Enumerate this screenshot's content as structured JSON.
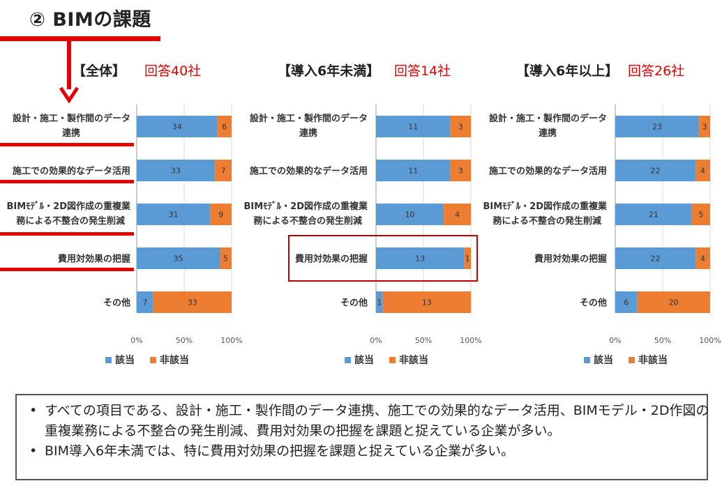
{
  "page_title": "② BIMの課題",
  "colors": {
    "series1": "#5b9bd5",
    "series2": "#ed7d31",
    "accent": "#e60000"
  },
  "chart_data": [
    {
      "type": "bar",
      "orientation": "horizontal",
      "stacked": "percent",
      "title": "【全体】",
      "subtitle": "回答40社",
      "categories": [
        "設計・施工・製作間のデータ連携",
        "施工での効果的なデータ活用",
        "BIMﾓﾃﾞﾙ・2D図作成の重複業務による不整合の発生削減",
        "費用対効果の把握",
        "その他"
      ],
      "category_lines": [
        [
          "設計・施工・製作間のデータ",
          "連携"
        ],
        [
          "施工での効果的なデータ活用"
        ],
        [
          "BIMﾓﾃﾞﾙ・2D図作成の重複業",
          "務による不整合の発生削減"
        ],
        [
          "費用対効果の把握"
        ],
        [
          "その他"
        ]
      ],
      "series": [
        {
          "name": "該当",
          "values": [
            34,
            33,
            31,
            35,
            7
          ]
        },
        {
          "name": "非該当",
          "values": [
            6,
            7,
            9,
            5,
            33
          ]
        }
      ],
      "x_ticks": [
        "0%",
        "50%",
        "100%"
      ],
      "legend": "bottom"
    },
    {
      "type": "bar",
      "orientation": "horizontal",
      "stacked": "percent",
      "title": "【導入6年未満】",
      "subtitle": "回答14社",
      "categories": [
        "設計・施工・製作間のデータ連携",
        "施工での効果的なデータ活用",
        "BIMﾓﾃﾞﾙ・2D図作成の重複業務による不整合の発生削減",
        "費用対効果の把握",
        "その他"
      ],
      "category_lines": [
        [
          "設計・施工・製作間のデータ",
          "連携"
        ],
        [
          "施工での効果的なデータ活用"
        ],
        [
          "BIMﾓﾃﾞﾙ・2D図作成の重複業",
          "務による不整合の発生削減"
        ],
        [
          "費用対効果の把握"
        ],
        [
          "その他"
        ]
      ],
      "series": [
        {
          "name": "該当",
          "values": [
            11,
            11,
            10,
            13,
            1
          ]
        },
        {
          "name": "非該当",
          "values": [
            3,
            3,
            4,
            1,
            13
          ]
        }
      ],
      "x_ticks": [
        "0%",
        "50%",
        "100%"
      ],
      "legend": "bottom",
      "highlight_category": "費用対効果の把握"
    },
    {
      "type": "bar",
      "orientation": "horizontal",
      "stacked": "percent",
      "title": "【導入6年以上】",
      "subtitle": "回答26社",
      "categories": [
        "設計・施工・製作間のデータ連携",
        "施工での効果的なデータ活用",
        "BIMﾓﾃﾞﾙ・2D図作成の重複業務による不整合の発生削減",
        "費用対効果の把握",
        "その他"
      ],
      "category_lines": [
        [
          "設計・施工・製作間のデータ",
          "連携"
        ],
        [
          "施工での効果的なデータ活用"
        ],
        [
          "BIMﾓﾃﾞﾙ・2D図作成の重複業",
          "務による不整合の発生削減"
        ],
        [
          "費用対効果の把握"
        ],
        [
          "その他"
        ]
      ],
      "series": [
        {
          "name": "該当",
          "values": [
            23,
            22,
            21,
            22,
            6
          ]
        },
        {
          "name": "非該当",
          "values": [
            3,
            4,
            5,
            4,
            20
          ]
        }
      ],
      "x_ticks": [
        "0%",
        "50%",
        "100%"
      ],
      "legend": "bottom"
    }
  ],
  "notes": [
    "すべての項目である、設計・施工・製作間のデータ連携、施工での効果的なデータ活用、BIMモデル・2D作図の重複業務による不整合の発生削減、費用対効果の把握を課題と捉えている企業が多い。",
    "BIM導入6年未満では、特に費用対効果の把握を課題と捉えている企業が多い。"
  ],
  "bullet_char": "•"
}
